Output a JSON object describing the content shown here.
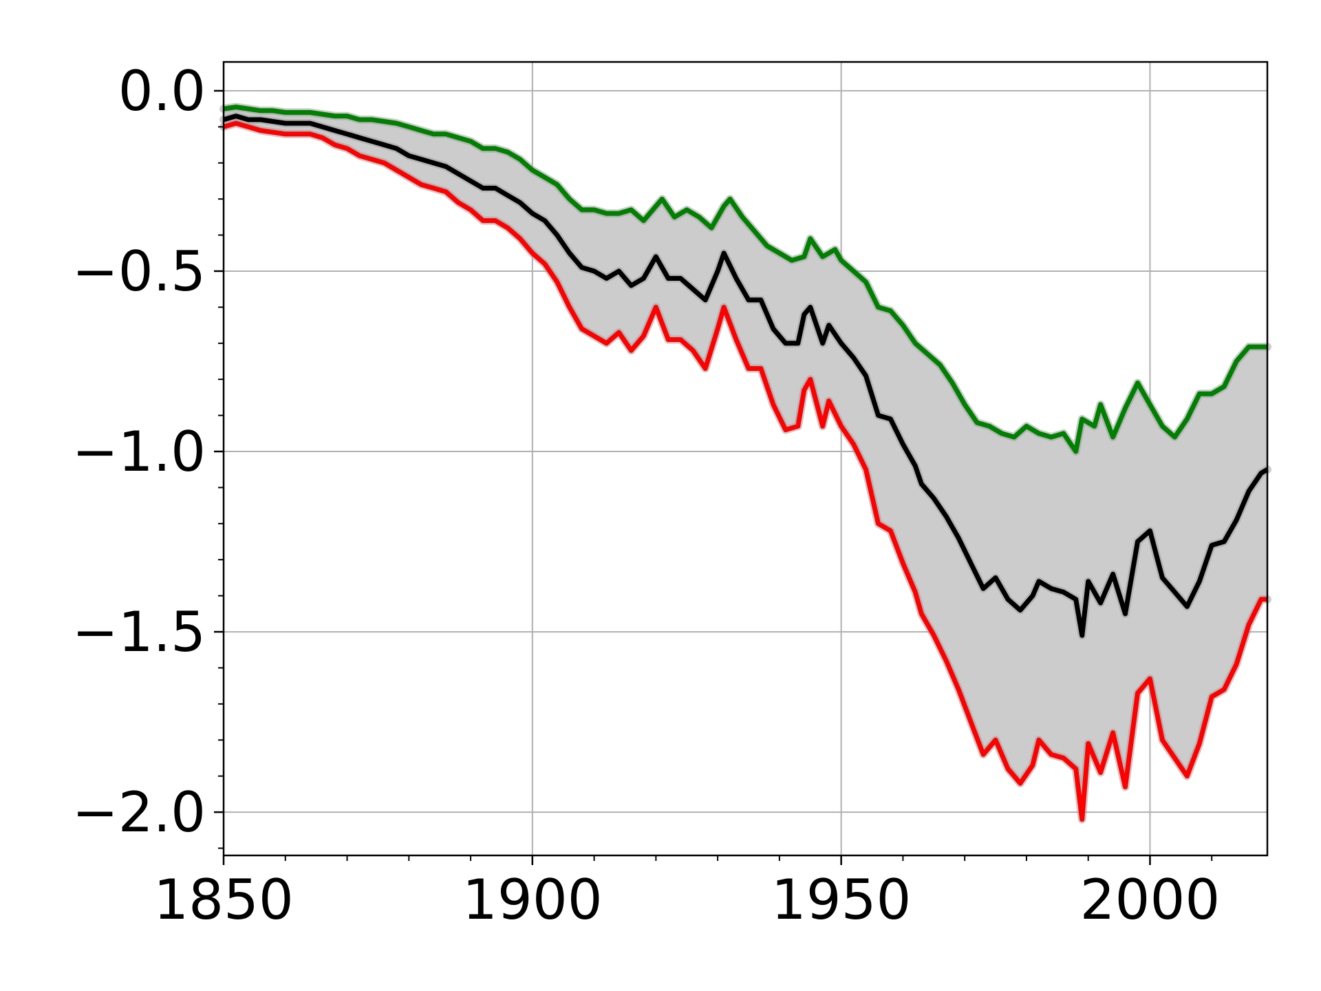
{
  "chart_data": {
    "type": "line",
    "title": "",
    "xlabel": "",
    "ylabel": "",
    "xlim": [
      1850,
      2019
    ],
    "ylim": [
      -2.12,
      0.08
    ],
    "grid": true,
    "x_major_ticks": [
      1850,
      1900,
      1950,
      2000
    ],
    "x_tick_labels": [
      "1850",
      "1900",
      "1950",
      "2000"
    ],
    "x_minor_ticks": [
      1860,
      1870,
      1880,
      1890,
      1910,
      1920,
      1930,
      1940,
      1960,
      1970,
      1980,
      1990,
      2010
    ],
    "y_major_ticks": [
      0.0,
      -0.5,
      -1.0,
      -1.5,
      -2.0
    ],
    "y_tick_labels": [
      "0.0",
      "−0.5",
      "−1.0",
      "−1.5",
      "−2.0"
    ],
    "y_minor_ticks": [
      -0.1,
      -0.2,
      -0.3,
      -0.4,
      -0.6,
      -0.7,
      -0.8,
      -0.9,
      -1.1,
      -1.2,
      -1.3,
      -1.4,
      -1.6,
      -1.7,
      -1.8,
      -1.9,
      -2.1
    ],
    "colors": {
      "band": "#cccccc",
      "band_edge": "#a0a0a0",
      "upper": "#008000",
      "central": "#000000",
      "lower": "#ff0000",
      "grid": "#b0b0b0"
    },
    "band_between": [
      "upper",
      "lower"
    ],
    "series": [
      {
        "key": "upper",
        "points": [
          [
            1850,
            -0.05
          ],
          [
            1852,
            -0.045
          ],
          [
            1854,
            -0.05
          ],
          [
            1856,
            -0.055
          ],
          [
            1858,
            -0.055
          ],
          [
            1860,
            -0.06
          ],
          [
            1862,
            -0.06
          ],
          [
            1864,
            -0.06
          ],
          [
            1866,
            -0.065
          ],
          [
            1868,
            -0.07
          ],
          [
            1870,
            -0.07
          ],
          [
            1872,
            -0.08
          ],
          [
            1874,
            -0.08
          ],
          [
            1876,
            -0.085
          ],
          [
            1878,
            -0.09
          ],
          [
            1880,
            -0.1
          ],
          [
            1882,
            -0.11
          ],
          [
            1884,
            -0.12
          ],
          [
            1886,
            -0.12
          ],
          [
            1888,
            -0.13
          ],
          [
            1890,
            -0.14
          ],
          [
            1892,
            -0.16
          ],
          [
            1894,
            -0.16
          ],
          [
            1896,
            -0.17
          ],
          [
            1898,
            -0.19
          ],
          [
            1900,
            -0.22
          ],
          [
            1902,
            -0.24
          ],
          [
            1904,
            -0.26
          ],
          [
            1906,
            -0.3
          ],
          [
            1908,
            -0.33
          ],
          [
            1910,
            -0.33
          ],
          [
            1912,
            -0.34
          ],
          [
            1914,
            -0.34
          ],
          [
            1916,
            -0.33
          ],
          [
            1918,
            -0.36
          ],
          [
            1920,
            -0.32
          ],
          [
            1921,
            -0.3
          ],
          [
            1923,
            -0.35
          ],
          [
            1925,
            -0.33
          ],
          [
            1927,
            -0.35
          ],
          [
            1929,
            -0.38
          ],
          [
            1931,
            -0.32
          ],
          [
            1932,
            -0.3
          ],
          [
            1934,
            -0.35
          ],
          [
            1936,
            -0.39
          ],
          [
            1938,
            -0.43
          ],
          [
            1940,
            -0.45
          ],
          [
            1942,
            -0.47
          ],
          [
            1944,
            -0.46
          ],
          [
            1945,
            -0.41
          ],
          [
            1947,
            -0.46
          ],
          [
            1949,
            -0.44
          ],
          [
            1950,
            -0.47
          ],
          [
            1952,
            -0.5
          ],
          [
            1954,
            -0.53
          ],
          [
            1956,
            -0.6
          ],
          [
            1958,
            -0.61
          ],
          [
            1960,
            -0.65
          ],
          [
            1962,
            -0.7
          ],
          [
            1964,
            -0.73
          ],
          [
            1966,
            -0.76
          ],
          [
            1968,
            -0.81
          ],
          [
            1970,
            -0.87
          ],
          [
            1972,
            -0.92
          ],
          [
            1974,
            -0.93
          ],
          [
            1976,
            -0.95
          ],
          [
            1978,
            -0.96
          ],
          [
            1980,
            -0.93
          ],
          [
            1982,
            -0.95
          ],
          [
            1984,
            -0.96
          ],
          [
            1986,
            -0.95
          ],
          [
            1988,
            -1.0
          ],
          [
            1989,
            -0.91
          ],
          [
            1991,
            -0.93
          ],
          [
            1992,
            -0.87
          ],
          [
            1994,
            -0.96
          ],
          [
            1996,
            -0.88
          ],
          [
            1998,
            -0.81
          ],
          [
            2000,
            -0.87
          ],
          [
            2002,
            -0.93
          ],
          [
            2004,
            -0.96
          ],
          [
            2006,
            -0.91
          ],
          [
            2008,
            -0.84
          ],
          [
            2010,
            -0.84
          ],
          [
            2012,
            -0.82
          ],
          [
            2014,
            -0.75
          ],
          [
            2016,
            -0.71
          ],
          [
            2019,
            -0.71
          ]
        ]
      },
      {
        "key": "central",
        "points": [
          [
            1850,
            -0.08
          ],
          [
            1852,
            -0.07
          ],
          [
            1854,
            -0.08
          ],
          [
            1856,
            -0.08
          ],
          [
            1858,
            -0.085
          ],
          [
            1860,
            -0.09
          ],
          [
            1862,
            -0.09
          ],
          [
            1864,
            -0.09
          ],
          [
            1866,
            -0.1
          ],
          [
            1868,
            -0.11
          ],
          [
            1870,
            -0.12
          ],
          [
            1872,
            -0.13
          ],
          [
            1874,
            -0.14
          ],
          [
            1876,
            -0.15
          ],
          [
            1878,
            -0.16
          ],
          [
            1880,
            -0.18
          ],
          [
            1882,
            -0.19
          ],
          [
            1884,
            -0.2
          ],
          [
            1886,
            -0.21
          ],
          [
            1888,
            -0.23
          ],
          [
            1890,
            -0.25
          ],
          [
            1892,
            -0.27
          ],
          [
            1894,
            -0.27
          ],
          [
            1896,
            -0.29
          ],
          [
            1898,
            -0.31
          ],
          [
            1900,
            -0.34
          ],
          [
            1902,
            -0.36
          ],
          [
            1904,
            -0.4
          ],
          [
            1906,
            -0.45
          ],
          [
            1908,
            -0.49
          ],
          [
            1910,
            -0.5
          ],
          [
            1912,
            -0.52
          ],
          [
            1914,
            -0.5
          ],
          [
            1916,
            -0.54
          ],
          [
            1918,
            -0.52
          ],
          [
            1920,
            -0.46
          ],
          [
            1922,
            -0.52
          ],
          [
            1924,
            -0.52
          ],
          [
            1926,
            -0.55
          ],
          [
            1928,
            -0.58
          ],
          [
            1930,
            -0.5
          ],
          [
            1931,
            -0.45
          ],
          [
            1933,
            -0.52
          ],
          [
            1935,
            -0.58
          ],
          [
            1937,
            -0.58
          ],
          [
            1939,
            -0.66
          ],
          [
            1941,
            -0.7
          ],
          [
            1943,
            -0.7
          ],
          [
            1944,
            -0.62
          ],
          [
            1945,
            -0.6
          ],
          [
            1947,
            -0.7
          ],
          [
            1948,
            -0.65
          ],
          [
            1950,
            -0.7
          ],
          [
            1952,
            -0.74
          ],
          [
            1954,
            -0.79
          ],
          [
            1956,
            -0.9
          ],
          [
            1958,
            -0.91
          ],
          [
            1960,
            -0.98
          ],
          [
            1962,
            -1.04
          ],
          [
            1963,
            -1.09
          ],
          [
            1965,
            -1.13
          ],
          [
            1967,
            -1.18
          ],
          [
            1969,
            -1.24
          ],
          [
            1971,
            -1.31
          ],
          [
            1973,
            -1.38
          ],
          [
            1975,
            -1.35
          ],
          [
            1977,
            -1.41
          ],
          [
            1979,
            -1.44
          ],
          [
            1981,
            -1.4
          ],
          [
            1982,
            -1.36
          ],
          [
            1984,
            -1.38
          ],
          [
            1986,
            -1.39
          ],
          [
            1988,
            -1.41
          ],
          [
            1989,
            -1.51
          ],
          [
            1990,
            -1.36
          ],
          [
            1992,
            -1.42
          ],
          [
            1994,
            -1.34
          ],
          [
            1996,
            -1.45
          ],
          [
            1998,
            -1.25
          ],
          [
            2000,
            -1.22
          ],
          [
            2002,
            -1.35
          ],
          [
            2004,
            -1.39
          ],
          [
            2006,
            -1.43
          ],
          [
            2008,
            -1.36
          ],
          [
            2010,
            -1.26
          ],
          [
            2012,
            -1.25
          ],
          [
            2014,
            -1.19
          ],
          [
            2016,
            -1.11
          ],
          [
            2018,
            -1.06
          ],
          [
            2019,
            -1.05
          ]
        ]
      },
      {
        "key": "lower",
        "points": [
          [
            1850,
            -0.1
          ],
          [
            1852,
            -0.09
          ],
          [
            1854,
            -0.1
          ],
          [
            1856,
            -0.11
          ],
          [
            1858,
            -0.115
          ],
          [
            1860,
            -0.12
          ],
          [
            1862,
            -0.12
          ],
          [
            1864,
            -0.12
          ],
          [
            1866,
            -0.13
          ],
          [
            1868,
            -0.15
          ],
          [
            1870,
            -0.16
          ],
          [
            1872,
            -0.18
          ],
          [
            1874,
            -0.19
          ],
          [
            1876,
            -0.2
          ],
          [
            1878,
            -0.22
          ],
          [
            1880,
            -0.24
          ],
          [
            1882,
            -0.26
          ],
          [
            1884,
            -0.27
          ],
          [
            1886,
            -0.28
          ],
          [
            1888,
            -0.31
          ],
          [
            1890,
            -0.33
          ],
          [
            1892,
            -0.36
          ],
          [
            1894,
            -0.36
          ],
          [
            1896,
            -0.38
          ],
          [
            1898,
            -0.41
          ],
          [
            1900,
            -0.45
          ],
          [
            1902,
            -0.48
          ],
          [
            1904,
            -0.53
          ],
          [
            1906,
            -0.6
          ],
          [
            1908,
            -0.66
          ],
          [
            1910,
            -0.68
          ],
          [
            1912,
            -0.7
          ],
          [
            1914,
            -0.67
          ],
          [
            1916,
            -0.72
          ],
          [
            1918,
            -0.68
          ],
          [
            1920,
            -0.6
          ],
          [
            1922,
            -0.69
          ],
          [
            1924,
            -0.69
          ],
          [
            1926,
            -0.72
          ],
          [
            1928,
            -0.77
          ],
          [
            1930,
            -0.66
          ],
          [
            1931,
            -0.6
          ],
          [
            1933,
            -0.69
          ],
          [
            1935,
            -0.77
          ],
          [
            1937,
            -0.77
          ],
          [
            1939,
            -0.87
          ],
          [
            1941,
            -0.94
          ],
          [
            1943,
            -0.93
          ],
          [
            1944,
            -0.83
          ],
          [
            1945,
            -0.8
          ],
          [
            1947,
            -0.93
          ],
          [
            1948,
            -0.86
          ],
          [
            1950,
            -0.93
          ],
          [
            1952,
            -0.98
          ],
          [
            1954,
            -1.05
          ],
          [
            1956,
            -1.2
          ],
          [
            1958,
            -1.22
          ],
          [
            1960,
            -1.31
          ],
          [
            1962,
            -1.39
          ],
          [
            1963,
            -1.45
          ],
          [
            1965,
            -1.51
          ],
          [
            1967,
            -1.58
          ],
          [
            1969,
            -1.66
          ],
          [
            1971,
            -1.75
          ],
          [
            1973,
            -1.84
          ],
          [
            1975,
            -1.8
          ],
          [
            1977,
            -1.88
          ],
          [
            1979,
            -1.92
          ],
          [
            1981,
            -1.87
          ],
          [
            1982,
            -1.8
          ],
          [
            1984,
            -1.84
          ],
          [
            1986,
            -1.85
          ],
          [
            1988,
            -1.88
          ],
          [
            1989,
            -2.02
          ],
          [
            1990,
            -1.81
          ],
          [
            1992,
            -1.89
          ],
          [
            1994,
            -1.78
          ],
          [
            1996,
            -1.93
          ],
          [
            1998,
            -1.67
          ],
          [
            2000,
            -1.63
          ],
          [
            2002,
            -1.8
          ],
          [
            2004,
            -1.85
          ],
          [
            2006,
            -1.9
          ],
          [
            2008,
            -1.81
          ],
          [
            2010,
            -1.68
          ],
          [
            2012,
            -1.66
          ],
          [
            2014,
            -1.59
          ],
          [
            2016,
            -1.48
          ],
          [
            2018,
            -1.41
          ],
          [
            2019,
            -1.41
          ]
        ]
      }
    ]
  }
}
